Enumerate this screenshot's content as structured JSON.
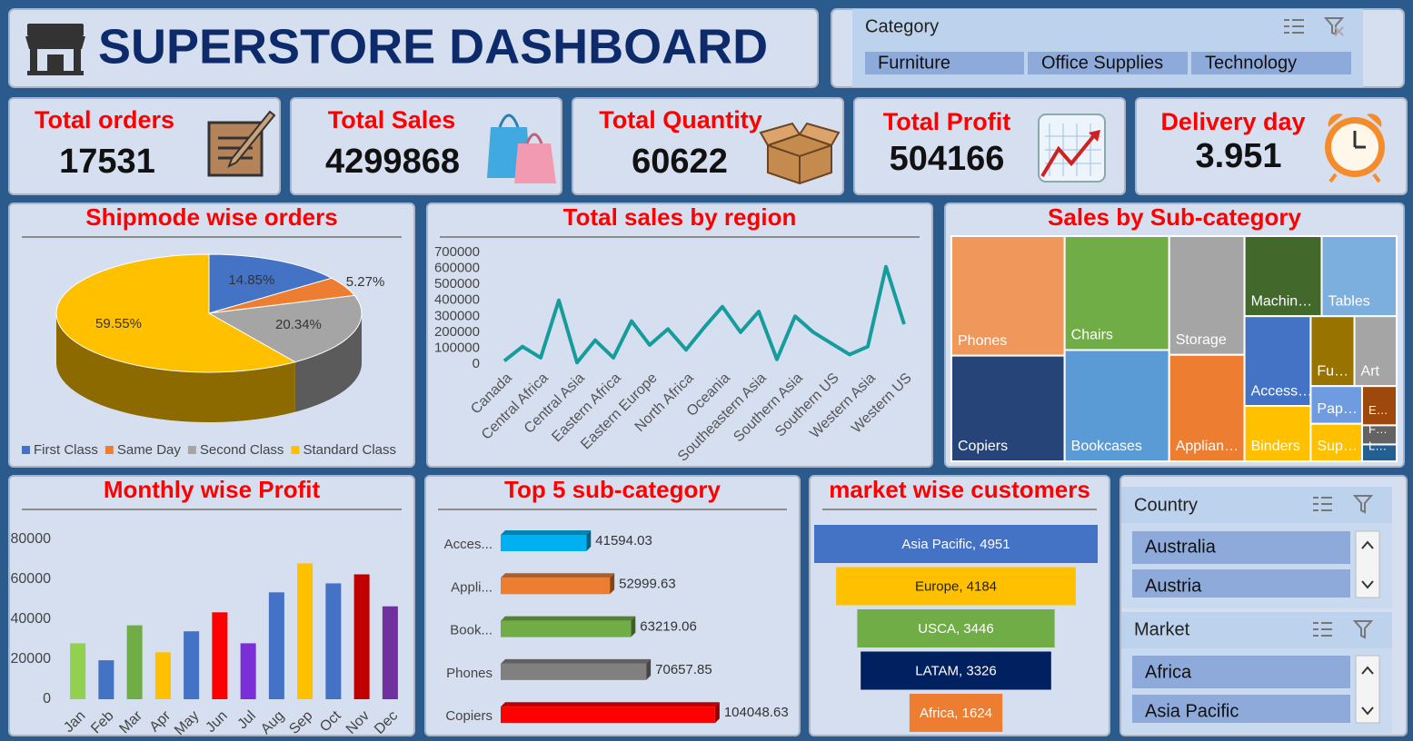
{
  "header": {
    "title": "SUPERSTORE DASHBOARD"
  },
  "slicers": [
    {
      "title": "Category",
      "items": [
        "Furniture",
        "Office Supplies",
        "Technology"
      ]
    },
    {
      "title": "Country",
      "items": [
        "Australia",
        "Austria"
      ]
    },
    {
      "title": "Market",
      "items": [
        "Africa",
        "Asia Pacific"
      ]
    }
  ],
  "kpis": [
    {
      "label": "Total orders",
      "value": 17531
    },
    {
      "label": "Total Sales",
      "value": 4299868
    },
    {
      "label": "Total Quantity",
      "value": 60622
    },
    {
      "label": "Total Profit",
      "value": 504166
    },
    {
      "label": "Delivery day",
      "value": 3.951
    }
  ],
  "chart_data": [
    {
      "type": "pie",
      "title": "Shipmode wise orders",
      "categories": [
        "First Class",
        "Same Day",
        "Second Class",
        "Standard Class"
      ],
      "values": [
        14.85,
        5.27,
        20.34,
        59.55
      ],
      "value_labels": [
        "14.85%",
        "5.27%",
        "20.34%",
        "59.55%"
      ],
      "colors": [
        "#4472c4",
        "#ed7d31",
        "#a5a5a5",
        "#ffc000"
      ],
      "legend": "bottom"
    },
    {
      "type": "line",
      "title": "Total sales by region",
      "categories": [
        "Canada",
        null,
        "Central Africa",
        null,
        "Central Asia",
        null,
        "Eastern Africa",
        null,
        "Eastern Europe",
        null,
        "North Africa",
        null,
        "Oceania",
        null,
        "Southeastern Asia",
        null,
        "Southern Asia",
        null,
        "Southern US",
        null,
        "Western Asia",
        null,
        "Western US"
      ],
      "values": [
        20000,
        110000,
        40000,
        400000,
        10000,
        150000,
        40000,
        270000,
        120000,
        220000,
        90000,
        230000,
        360000,
        200000,
        330000,
        30000,
        300000,
        200000,
        130000,
        60000,
        110000,
        610000,
        250000
      ],
      "color": "#179c9c",
      "ylim": [
        0,
        700000
      ],
      "yticks": [
        0,
        100000,
        200000,
        300000,
        400000,
        500000,
        600000,
        700000
      ],
      "grid": false
    },
    {
      "type": "treemap",
      "title": "Sales by Sub-category",
      "categories": [
        "Phones",
        "Copiers",
        "Chairs",
        "Bookcases",
        "Storage",
        "Applian…",
        "Machin…",
        "Tables",
        "Access…",
        "Binders",
        "Fu…",
        "Art",
        "Pap…",
        "Sup…",
        "E…",
        "F…",
        "L…"
      ],
      "values": [
        1706824,
        1509436,
        1501682,
        1466572,
        1127086,
        1011064,
        779060,
        757041,
        749237,
        461911,
        385578,
        372092,
        244292,
        243075,
        170904,
        83242,
        73404
      ],
      "colors": [
        "#f0975c",
        "#264478",
        "#70ad47",
        "#5b9bd5",
        "#a5a5a5",
        "#ed7d31",
        "#43682b",
        "#7cafdd",
        "#4472c4",
        "#ffc000",
        "#997300",
        "#a5a5a5",
        "#6f9ce0",
        "#ffc000",
        "#9e480e",
        "#636363",
        "#255e91"
      ]
    },
    {
      "type": "bar",
      "title": "Monthly wise Profit",
      "categories": [
        "Jan",
        "Feb",
        "Mar",
        "Apr",
        "May",
        "Jun",
        "Jul",
        "Aug",
        "Sep",
        "Oct",
        "Nov",
        "Dec"
      ],
      "values": [
        28000,
        19500,
        37000,
        23500,
        34000,
        43500,
        28000,
        53500,
        68000,
        58000,
        62500,
        46500
      ],
      "colors": [
        "#92d050",
        "#4472c4",
        "#70ad47",
        "#ffc000",
        "#4472c4",
        "#ff0000",
        "#7b2fd6",
        "#4472c4",
        "#ffc000",
        "#4472c4",
        "#c00000",
        "#7030a0"
      ],
      "ylim": [
        0,
        80000
      ],
      "yticks": [
        0,
        20000,
        40000,
        60000,
        80000
      ],
      "grid": false
    },
    {
      "type": "hbar",
      "title": "Top 5 sub-category",
      "categories": [
        "Acces...",
        "Appli...",
        "Book...",
        "Phones",
        "Copiers"
      ],
      "values": [
        41594.03,
        52999.63,
        63219.06,
        70657.85,
        104048.63
      ],
      "colors": [
        "#00b0f0",
        "#ed7d31",
        "#70ad47",
        "#808080",
        "#ff0000"
      ],
      "xlim": [
        0,
        120000
      ]
    },
    {
      "type": "funnel",
      "title": "market wise customers",
      "categories": [
        "Asia Pacific",
        "Europe",
        "USCA",
        "LATAM",
        "Africa"
      ],
      "values": [
        4951,
        4184,
        3446,
        3326,
        1624
      ],
      "value_labels": [
        "Asia Pacific, 4951",
        "Europe, 4184",
        "USCA, 3446",
        "LATAM, 3326",
        "Africa, 1624"
      ],
      "colors": [
        "#4472c4",
        "#ffc000",
        "#70ad47",
        "#002060",
        "#ed7d31"
      ]
    }
  ]
}
